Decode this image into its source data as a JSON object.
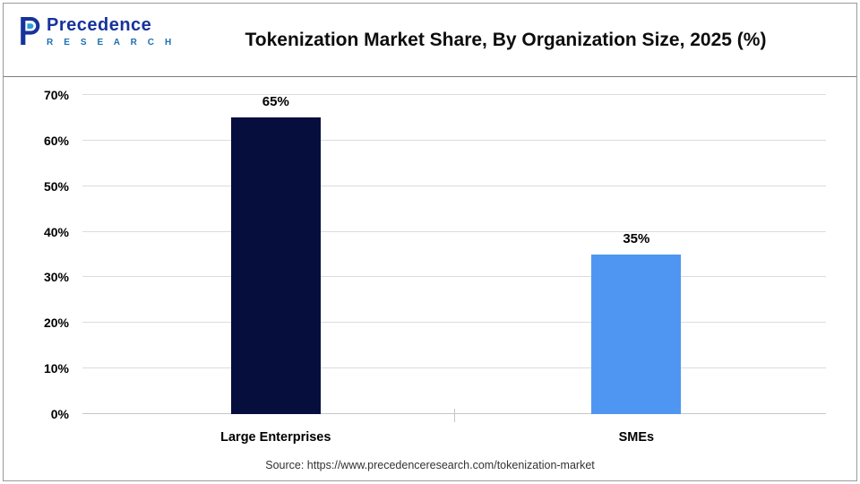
{
  "header": {
    "title": "Tokenization Market Share, By Organization Size, 2025 (%)",
    "logo": {
      "name": "Precedence",
      "subtitle": "R E S E A R C H"
    }
  },
  "chart_data": {
    "type": "bar",
    "title": "Tokenization Market Share, By Organization Size, 2025 (%)",
    "categories": [
      "Large Enterprises",
      "SMEs"
    ],
    "values": [
      65,
      35
    ],
    "value_labels": [
      "65%",
      "35%"
    ],
    "bar_colors": [
      "#050e3d",
      "#4e96f1"
    ],
    "xlabel": "",
    "ylabel": "",
    "ylim": [
      0,
      70
    ],
    "y_ticks": [
      "0%",
      "10%",
      "20%",
      "30%",
      "40%",
      "50%",
      "60%",
      "70%"
    ],
    "grid": true,
    "legend_position": "none"
  },
  "footer": {
    "source": "Source: https://www.precedenceresearch.com/tokenization-market"
  }
}
